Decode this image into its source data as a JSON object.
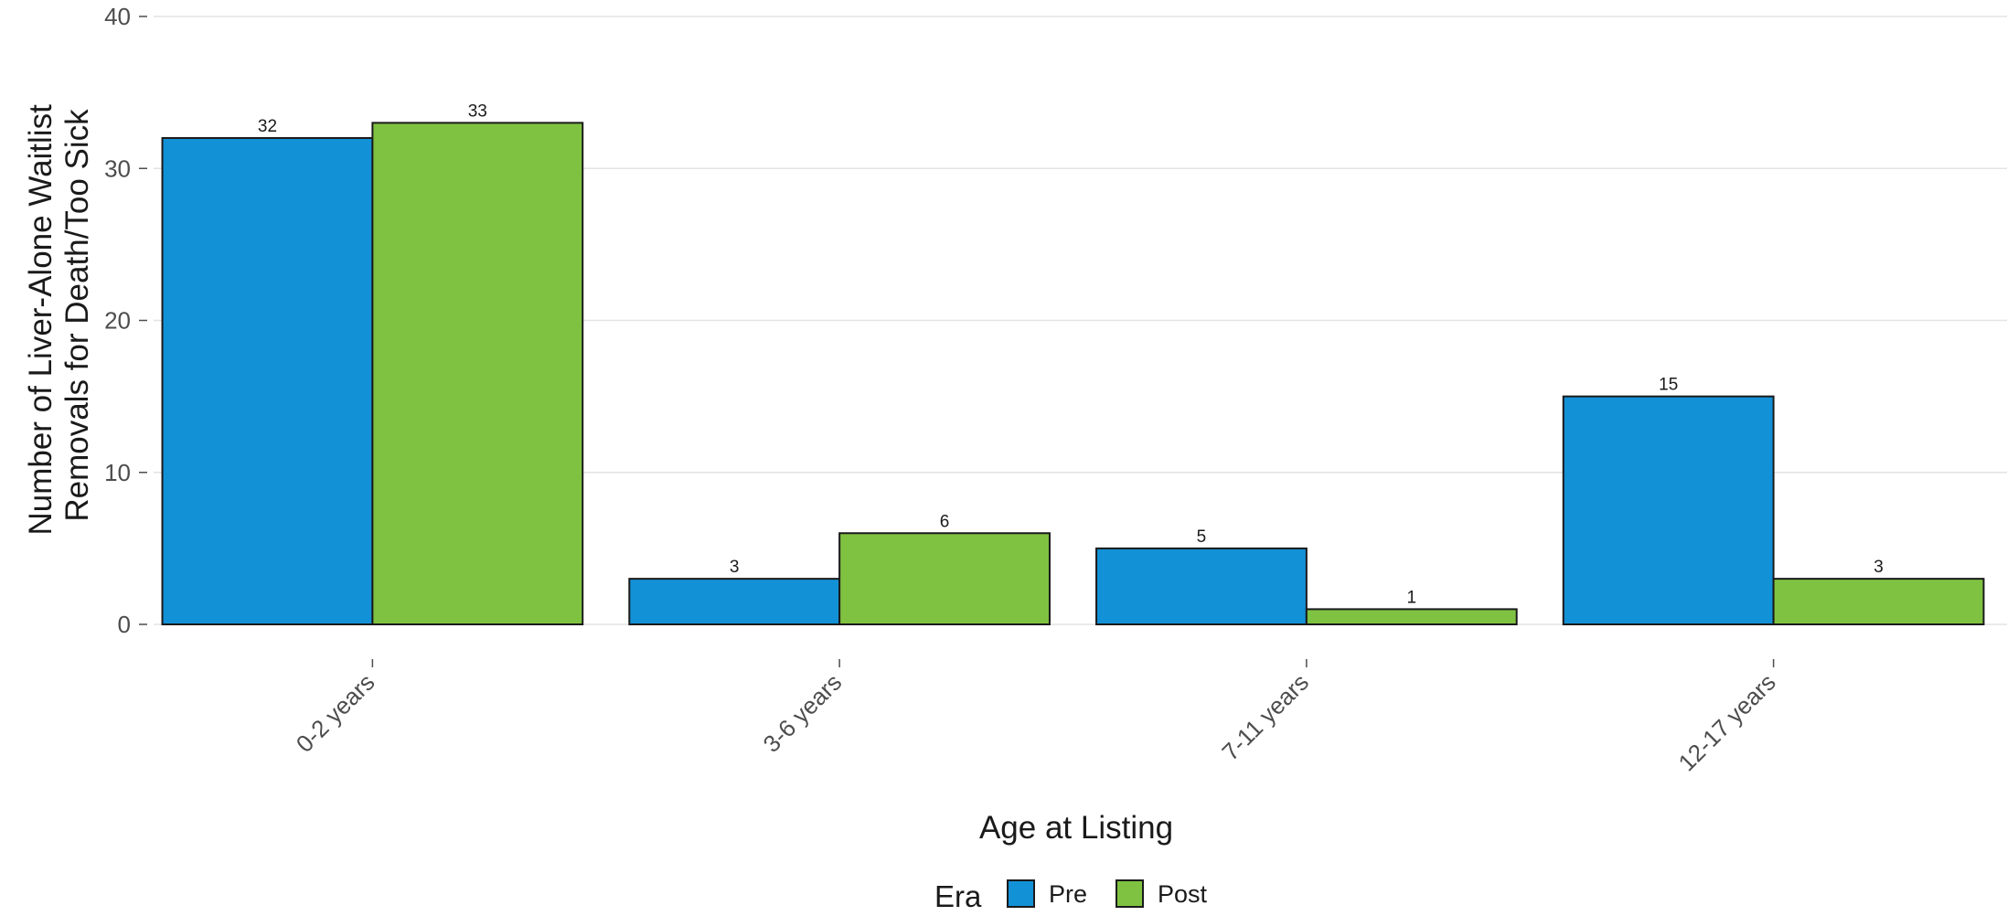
{
  "chart_data": {
    "type": "bar",
    "categories": [
      "0-2 years",
      "3-6 years",
      "7-11 years",
      "12-17 years"
    ],
    "series": [
      {
        "name": "Pre",
        "values": [
          32,
          3,
          5,
          15
        ],
        "color": "#1391d6"
      },
      {
        "name": "Post",
        "values": [
          33,
          6,
          1,
          3
        ],
        "color": "#7fc241"
      }
    ],
    "xlabel": "Age at Listing",
    "ylabel": [
      "Number of Liver-Alone Waitlist",
      "Removals for Death/Too Sick"
    ],
    "ylim": [
      0,
      40
    ],
    "yticks": [
      0,
      10,
      20,
      30,
      40
    ],
    "grid": true,
    "legend_title": "Era",
    "legend_position": "bottom",
    "data_labels": true
  }
}
